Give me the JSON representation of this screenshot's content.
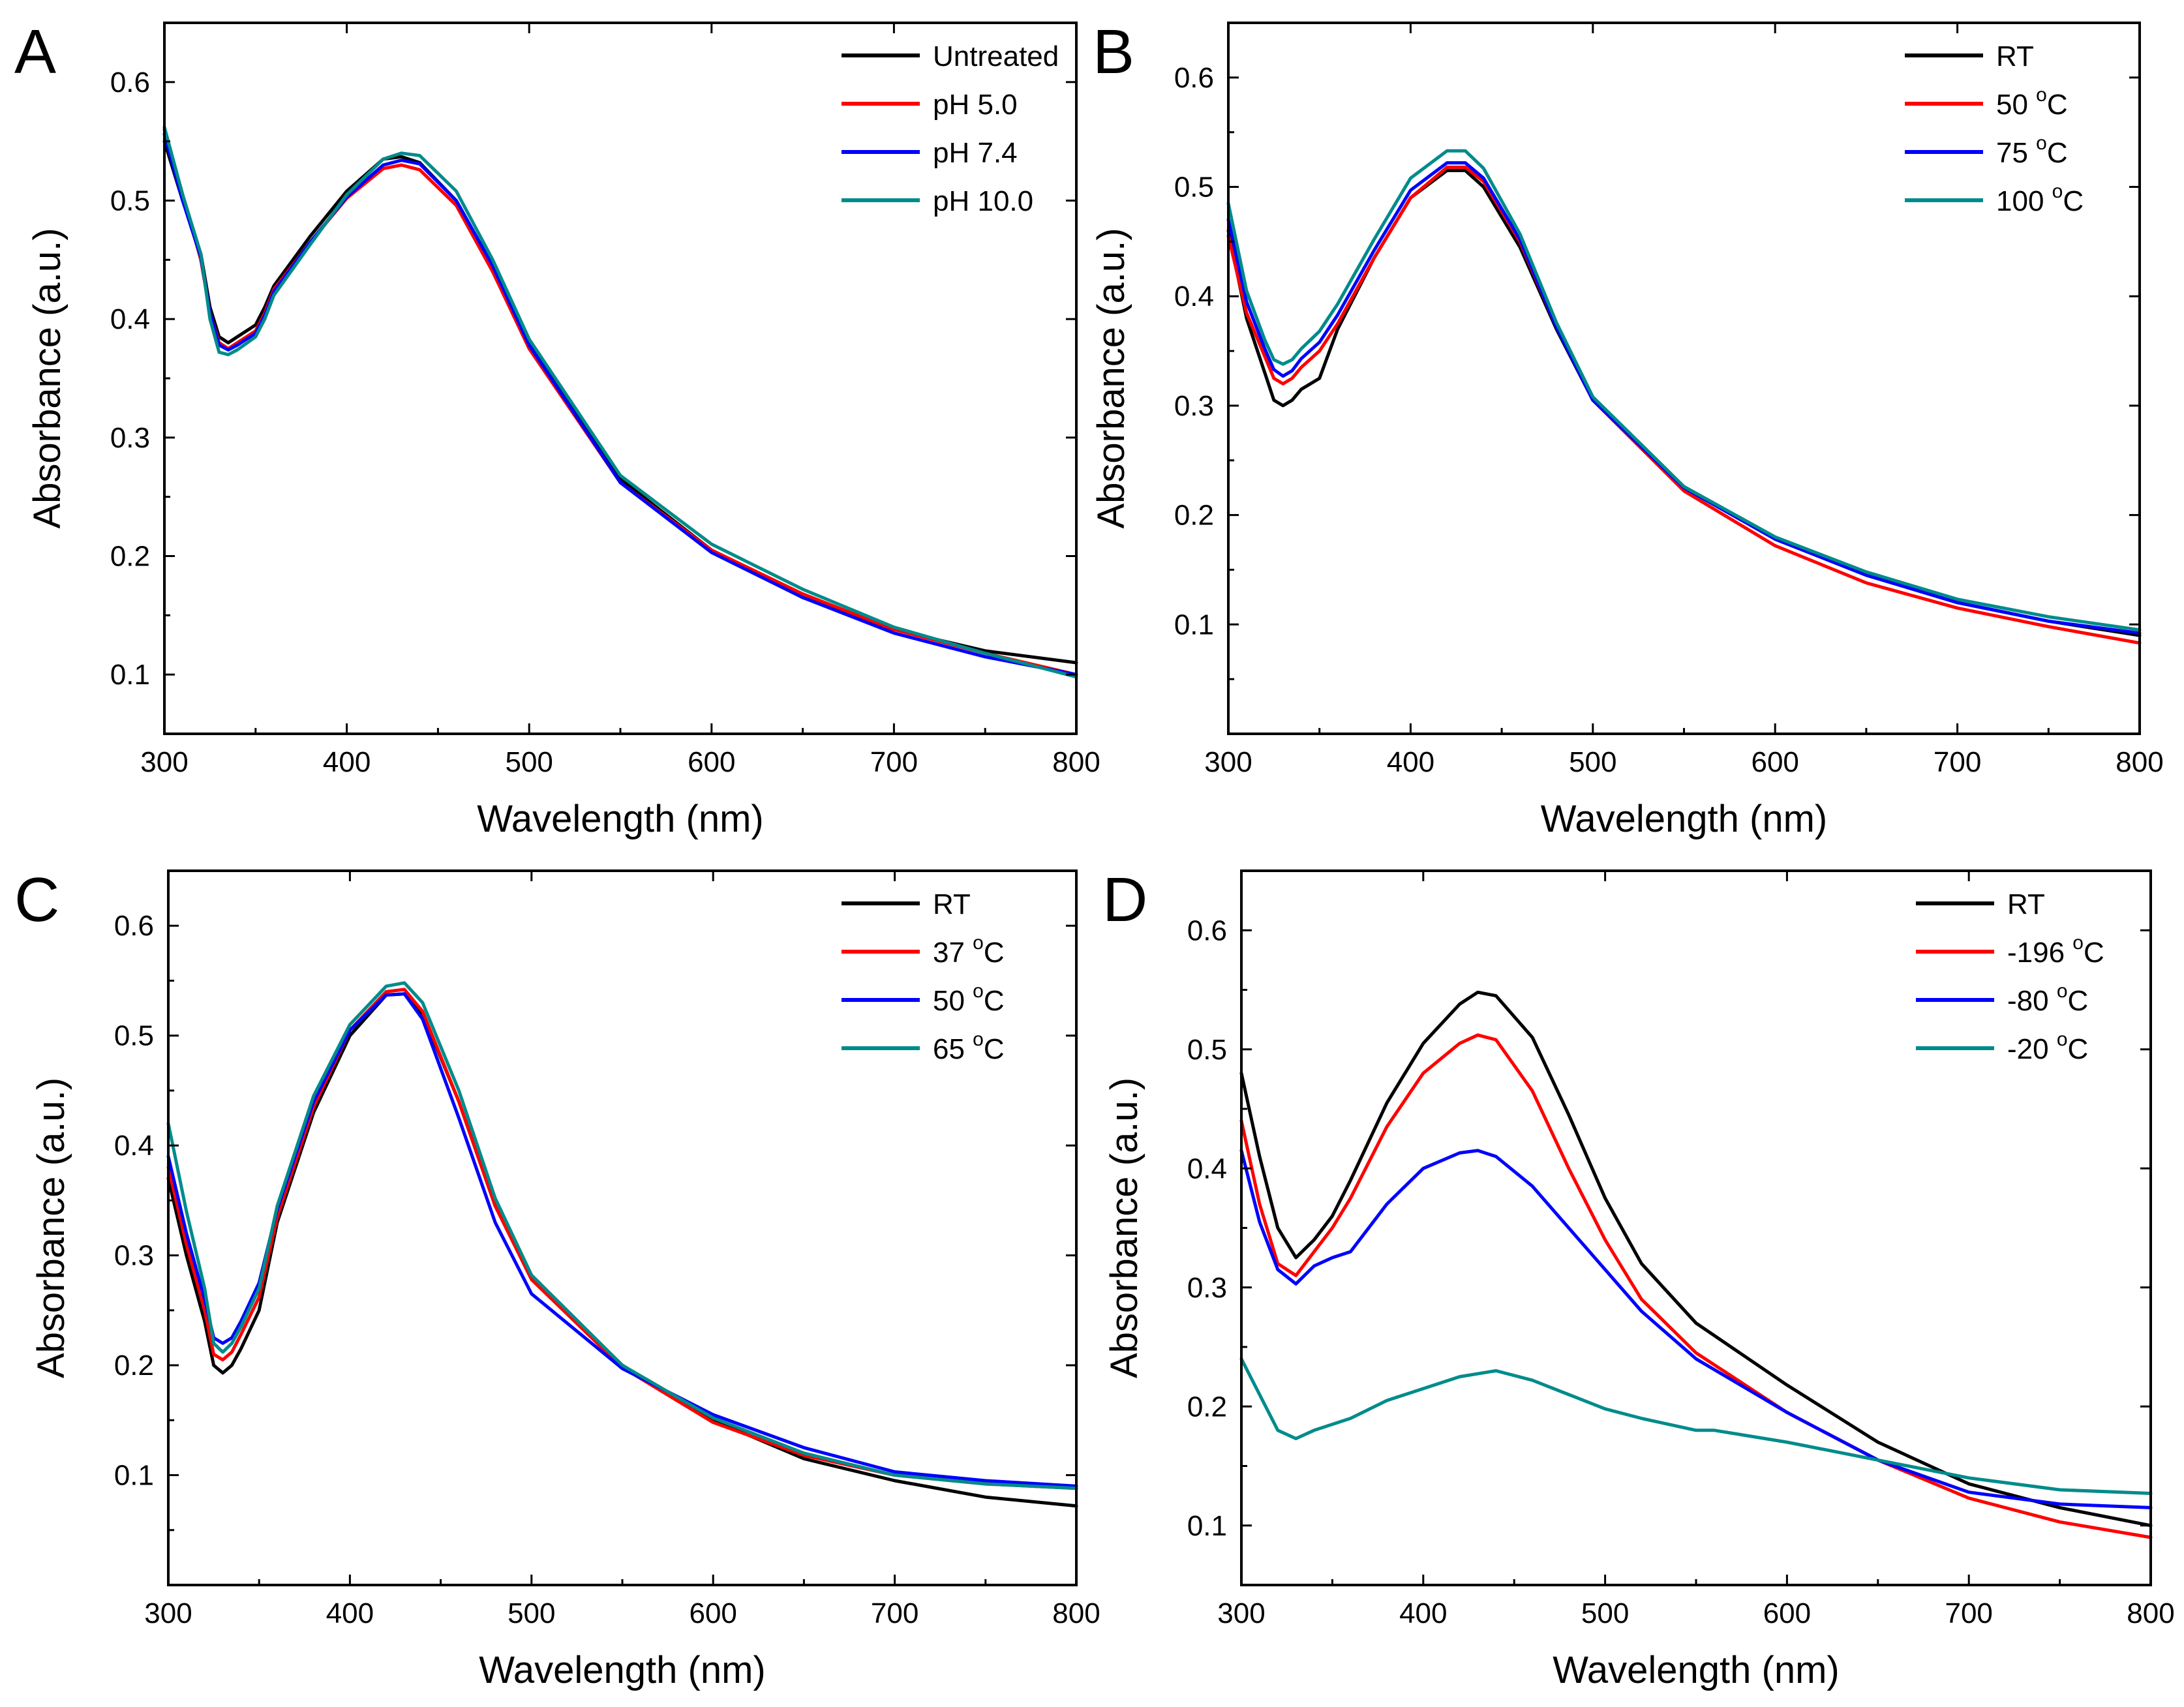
{
  "chart_data": [
    {
      "panel": "A",
      "type": "line",
      "xlabel": "Wavelength (nm)",
      "ylabel": "Absorbance (a.u.)",
      "xlim": [
        300,
        800
      ],
      "ylim": [
        0.05,
        0.65
      ],
      "xticks": [
        300,
        400,
        500,
        600,
        700,
        800
      ],
      "xtick_labels": [
        "300",
        "400",
        "500",
        "600",
        "700",
        "800"
      ],
      "yticks": [
        0.1,
        0.2,
        0.3,
        0.4,
        0.5,
        0.6
      ],
      "ytick_labels": [
        "0.1",
        "0.2",
        "0.3",
        "0.4",
        "0.5",
        "0.6"
      ],
      "legend_position": "top-right",
      "series": [
        {
          "name": "Untreated",
          "color": "#000000",
          "x": [
            300,
            310,
            320,
            325,
            330,
            335,
            340,
            350,
            355,
            360,
            380,
            400,
            420,
            430,
            440,
            460,
            480,
            500,
            550,
            600,
            650,
            700,
            750,
            800
          ],
          "y": [
            0.55,
            0.5,
            0.455,
            0.41,
            0.385,
            0.38,
            0.385,
            0.395,
            0.41,
            0.428,
            0.47,
            0.508,
            0.535,
            0.537,
            0.532,
            0.5,
            0.445,
            0.38,
            0.265,
            0.205,
            0.165,
            0.138,
            0.12,
            0.11
          ]
        },
        {
          "name": "pH 5.0",
          "color": "#ff0000",
          "x": [
            300,
            310,
            320,
            325,
            330,
            335,
            340,
            350,
            355,
            360,
            380,
            400,
            420,
            430,
            440,
            460,
            480,
            500,
            550,
            600,
            650,
            700,
            750,
            800
          ],
          "y": [
            0.56,
            0.505,
            0.45,
            0.405,
            0.38,
            0.375,
            0.38,
            0.39,
            0.405,
            0.425,
            0.465,
            0.502,
            0.527,
            0.53,
            0.526,
            0.496,
            0.44,
            0.375,
            0.262,
            0.205,
            0.168,
            0.138,
            0.118,
            0.1
          ]
        },
        {
          "name": "pH 7.4",
          "color": "#0000ff",
          "x": [
            300,
            310,
            320,
            325,
            330,
            335,
            340,
            350,
            355,
            360,
            380,
            400,
            420,
            430,
            440,
            460,
            480,
            500,
            550,
            600,
            650,
            700,
            750,
            800
          ],
          "y": [
            0.556,
            0.5,
            0.452,
            0.405,
            0.378,
            0.374,
            0.378,
            0.388,
            0.403,
            0.423,
            0.465,
            0.503,
            0.53,
            0.534,
            0.531,
            0.5,
            0.445,
            0.378,
            0.262,
            0.203,
            0.165,
            0.135,
            0.115,
            0.1
          ]
        },
        {
          "name": "pH 10.0",
          "color": "#008b8b",
          "x": [
            300,
            310,
            320,
            325,
            330,
            335,
            340,
            350,
            355,
            360,
            380,
            400,
            420,
            430,
            440,
            460,
            480,
            500,
            550,
            600,
            650,
            700,
            750,
            800
          ],
          "y": [
            0.562,
            0.505,
            0.455,
            0.4,
            0.372,
            0.37,
            0.374,
            0.385,
            0.4,
            0.42,
            0.463,
            0.505,
            0.535,
            0.54,
            0.538,
            0.508,
            0.45,
            0.383,
            0.268,
            0.21,
            0.172,
            0.14,
            0.118,
            0.098
          ]
        }
      ]
    },
    {
      "panel": "B",
      "type": "line",
      "xlabel": "Wavelength (nm)",
      "ylabel": "Absorbance (a.u.)",
      "xlim": [
        300,
        800
      ],
      "ylim": [
        0.0,
        0.65
      ],
      "xticks": [
        300,
        400,
        500,
        600,
        700,
        800
      ],
      "xtick_labels": [
        "300",
        "400",
        "500",
        "600",
        "700",
        "800"
      ],
      "yticks": [
        0.1,
        0.2,
        0.3,
        0.4,
        0.5,
        0.6
      ],
      "ytick_labels": [
        "0.1",
        "0.2",
        "0.3",
        "0.4",
        "0.5",
        "0.6"
      ],
      "legend_position": "top-right",
      "series": [
        {
          "name": "RT",
          "color": "#000000",
          "legend_base": "RT",
          "legend_sup": "",
          "legend_suffix": "",
          "x": [
            300,
            310,
            320,
            325,
            330,
            335,
            340,
            350,
            360,
            380,
            400,
            420,
            430,
            440,
            460,
            480,
            500,
            550,
            600,
            650,
            700,
            750,
            800
          ],
          "y": [
            0.46,
            0.38,
            0.33,
            0.305,
            0.3,
            0.305,
            0.315,
            0.325,
            0.37,
            0.435,
            0.49,
            0.515,
            0.515,
            0.5,
            0.445,
            0.37,
            0.305,
            0.225,
            0.178,
            0.145,
            0.12,
            0.103,
            0.09
          ]
        },
        {
          "name": "50 °C",
          "color": "#ff0000",
          "legend_base": "50 ",
          "legend_sup": "o",
          "legend_suffix": "C",
          "x": [
            300,
            310,
            320,
            325,
            330,
            335,
            340,
            350,
            360,
            380,
            400,
            420,
            430,
            440,
            460,
            480,
            500,
            550,
            600,
            650,
            700,
            750,
            800
          ],
          "y": [
            0.455,
            0.385,
            0.345,
            0.325,
            0.32,
            0.325,
            0.335,
            0.35,
            0.375,
            0.435,
            0.49,
            0.518,
            0.518,
            0.505,
            0.45,
            0.372,
            0.305,
            0.222,
            0.172,
            0.138,
            0.115,
            0.098,
            0.083
          ]
        },
        {
          "name": "75 °C",
          "color": "#0000ff",
          "legend_base": "75 ",
          "legend_sup": "o",
          "legend_suffix": "C",
          "x": [
            300,
            310,
            320,
            325,
            330,
            335,
            340,
            350,
            360,
            380,
            400,
            420,
            430,
            440,
            460,
            480,
            500,
            550,
            600,
            650,
            700,
            750,
            800
          ],
          "y": [
            0.47,
            0.395,
            0.352,
            0.333,
            0.327,
            0.332,
            0.343,
            0.358,
            0.383,
            0.442,
            0.497,
            0.522,
            0.522,
            0.508,
            0.452,
            0.372,
            0.305,
            0.225,
            0.178,
            0.145,
            0.12,
            0.103,
            0.092
          ]
        },
        {
          "name": "100 °C",
          "color": "#008b8b",
          "legend_base": "100 ",
          "legend_sup": "o",
          "legend_suffix": "C",
          "x": [
            300,
            310,
            320,
            325,
            330,
            335,
            340,
            350,
            360,
            380,
            400,
            420,
            430,
            440,
            460,
            480,
            500,
            550,
            600,
            650,
            700,
            750,
            800
          ],
          "y": [
            0.485,
            0.405,
            0.36,
            0.342,
            0.338,
            0.342,
            0.352,
            0.368,
            0.393,
            0.452,
            0.508,
            0.533,
            0.533,
            0.517,
            0.457,
            0.376,
            0.308,
            0.226,
            0.18,
            0.148,
            0.123,
            0.107,
            0.095
          ]
        }
      ]
    },
    {
      "panel": "C",
      "type": "line",
      "xlabel": "Wavelength (nm)",
      "ylabel": "Absorbance (a.u.)",
      "xlim": [
        300,
        800
      ],
      "ylim": [
        0.0,
        0.65
      ],
      "xticks": [
        300,
        400,
        500,
        600,
        700,
        800
      ],
      "xtick_labels": [
        "300",
        "400",
        "500",
        "600",
        "700",
        "800"
      ],
      "yticks": [
        0.1,
        0.2,
        0.3,
        0.4,
        0.5,
        0.6
      ],
      "ytick_labels": [
        "0.1",
        "0.2",
        "0.3",
        "0.4",
        "0.5",
        "0.6"
      ],
      "legend_position": "top-right",
      "series": [
        {
          "name": "RT",
          "color": "#000000",
          "legend_base": "RT",
          "legend_sup": "",
          "legend_suffix": "",
          "x": [
            300,
            310,
            320,
            325,
            330,
            335,
            340,
            350,
            360,
            380,
            400,
            420,
            430,
            440,
            460,
            480,
            500,
            550,
            600,
            650,
            700,
            750,
            800
          ],
          "y": [
            0.37,
            0.3,
            0.24,
            0.2,
            0.193,
            0.2,
            0.215,
            0.25,
            0.33,
            0.43,
            0.5,
            0.537,
            0.538,
            0.52,
            0.44,
            0.345,
            0.28,
            0.2,
            0.15,
            0.115,
            0.095,
            0.08,
            0.072
          ]
        },
        {
          "name": "37 °C",
          "color": "#ff0000",
          "legend_base": "37 ",
          "legend_sup": "o",
          "legend_suffix": "C",
          "x": [
            300,
            310,
            320,
            325,
            330,
            335,
            340,
            350,
            360,
            380,
            400,
            420,
            430,
            440,
            460,
            480,
            500,
            550,
            600,
            650,
            700,
            750,
            800
          ],
          "y": [
            0.38,
            0.31,
            0.25,
            0.21,
            0.205,
            0.212,
            0.228,
            0.262,
            0.335,
            0.435,
            0.505,
            0.54,
            0.542,
            0.522,
            0.44,
            0.345,
            0.278,
            0.198,
            0.148,
            0.118,
            0.1,
            0.092,
            0.088
          ]
        },
        {
          "name": "50 °C",
          "color": "#0000ff",
          "legend_base": "50 ",
          "legend_sup": "o",
          "legend_suffix": "C",
          "x": [
            300,
            310,
            320,
            325,
            330,
            335,
            340,
            350,
            360,
            380,
            400,
            420,
            430,
            440,
            460,
            480,
            500,
            550,
            600,
            650,
            700,
            750,
            800
          ],
          "y": [
            0.39,
            0.32,
            0.26,
            0.225,
            0.22,
            0.225,
            0.24,
            0.275,
            0.342,
            0.44,
            0.505,
            0.537,
            0.538,
            0.515,
            0.425,
            0.33,
            0.265,
            0.197,
            0.155,
            0.125,
            0.103,
            0.095,
            0.09
          ]
        },
        {
          "name": "65 °C",
          "color": "#008b8b",
          "legend_base": "65 ",
          "legend_sup": "o",
          "legend_suffix": "C",
          "x": [
            300,
            310,
            320,
            325,
            330,
            335,
            340,
            350,
            360,
            380,
            400,
            420,
            430,
            440,
            460,
            480,
            500,
            550,
            600,
            650,
            700,
            750,
            800
          ],
          "y": [
            0.42,
            0.34,
            0.27,
            0.22,
            0.212,
            0.22,
            0.235,
            0.27,
            0.345,
            0.445,
            0.51,
            0.545,
            0.548,
            0.53,
            0.45,
            0.352,
            0.282,
            0.2,
            0.152,
            0.12,
            0.1,
            0.092,
            0.088
          ]
        }
      ]
    },
    {
      "panel": "D",
      "type": "line",
      "xlabel": "Wavelength (nm)",
      "ylabel": "Absorbance (a.u.)",
      "xlim": [
        300,
        800
      ],
      "ylim": [
        0.05,
        0.65
      ],
      "xticks": [
        300,
        400,
        500,
        600,
        700,
        800
      ],
      "xtick_labels": [
        "300",
        "400",
        "500",
        "600",
        "700",
        "800"
      ],
      "yticks": [
        0.1,
        0.2,
        0.3,
        0.4,
        0.5,
        0.6
      ],
      "ytick_labels": [
        "0.1",
        "0.2",
        "0.3",
        "0.4",
        "0.5",
        "0.6"
      ],
      "legend_position": "top-right",
      "series": [
        {
          "name": "RT",
          "color": "#000000",
          "legend_base": "RT",
          "legend_sup": "",
          "legend_suffix": "",
          "x": [
            300,
            310,
            320,
            330,
            340,
            350,
            360,
            380,
            400,
            420,
            430,
            440,
            460,
            480,
            500,
            520,
            550,
            600,
            650,
            700,
            750,
            800
          ],
          "y": [
            0.48,
            0.41,
            0.35,
            0.325,
            0.34,
            0.36,
            0.39,
            0.455,
            0.505,
            0.538,
            0.548,
            0.545,
            0.51,
            0.445,
            0.375,
            0.32,
            0.27,
            0.218,
            0.17,
            0.135,
            0.115,
            0.1
          ]
        },
        {
          "name": "-196 °C",
          "color": "#ff0000",
          "legend_base": "-196 ",
          "legend_sup": "o",
          "legend_suffix": "C",
          "x": [
            300,
            310,
            320,
            330,
            340,
            350,
            360,
            380,
            400,
            420,
            430,
            440,
            460,
            480,
            500,
            520,
            550,
            600,
            650,
            700,
            750,
            800
          ],
          "y": [
            0.44,
            0.37,
            0.32,
            0.31,
            0.33,
            0.35,
            0.375,
            0.435,
            0.48,
            0.505,
            0.512,
            0.508,
            0.465,
            0.4,
            0.34,
            0.29,
            0.245,
            0.195,
            0.155,
            0.123,
            0.103,
            0.09
          ]
        },
        {
          "name": "-80  °C",
          "color": "#0000ff",
          "legend_base": "-80  ",
          "legend_sup": "o",
          "legend_suffix": "C",
          "x": [
            300,
            310,
            320,
            330,
            340,
            350,
            360,
            380,
            400,
            420,
            430,
            440,
            460,
            480,
            500,
            520,
            550,
            600,
            650,
            700,
            750,
            800
          ],
          "y": [
            0.415,
            0.355,
            0.315,
            0.303,
            0.318,
            0.325,
            0.33,
            0.37,
            0.4,
            0.413,
            0.415,
            0.41,
            0.385,
            0.35,
            0.315,
            0.28,
            0.24,
            0.195,
            0.155,
            0.128,
            0.118,
            0.115
          ]
        },
        {
          "name": "-20  °C",
          "color": "#008b8b",
          "legend_base": "-20  ",
          "legend_sup": "o",
          "legend_suffix": "C",
          "x": [
            300,
            310,
            320,
            330,
            340,
            350,
            360,
            380,
            400,
            420,
            440,
            460,
            480,
            500,
            520,
            550,
            560,
            600,
            650,
            700,
            750,
            800
          ],
          "y": [
            0.24,
            0.21,
            0.18,
            0.173,
            0.18,
            0.185,
            0.19,
            0.205,
            0.215,
            0.225,
            0.23,
            0.222,
            0.21,
            0.198,
            0.19,
            0.18,
            0.18,
            0.17,
            0.155,
            0.14,
            0.13,
            0.127
          ]
        }
      ]
    }
  ]
}
